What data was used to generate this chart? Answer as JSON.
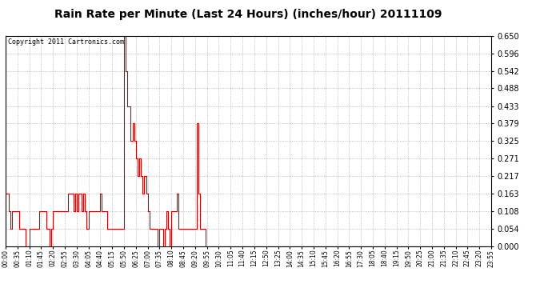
{
  "title": "Rain Rate per Minute (Last 24 Hours) (inches/hour) 20111109",
  "copyright": "Copyright 2011 Cartronics.com",
  "line_color": "#cc0000",
  "bg_color": "#ffffff",
  "grid_color": "#999999",
  "yticks": [
    0.0,
    0.054,
    0.108,
    0.163,
    0.217,
    0.271,
    0.325,
    0.379,
    0.433,
    0.488,
    0.542,
    0.596,
    0.65
  ],
  "ylim": [
    0.0,
    0.65
  ],
  "time_labels": [
    "00:00",
    "00:35",
    "01:10",
    "01:45",
    "02:20",
    "02:55",
    "03:30",
    "04:05",
    "04:40",
    "05:15",
    "05:50",
    "06:25",
    "07:00",
    "07:35",
    "08:10",
    "08:45",
    "09:20",
    "09:55",
    "10:30",
    "11:05",
    "11:40",
    "12:15",
    "12:50",
    "13:25",
    "14:00",
    "14:35",
    "15:10",
    "15:45",
    "16:20",
    "16:55",
    "17:30",
    "18:05",
    "18:40",
    "19:15",
    "19:50",
    "20:25",
    "21:00",
    "21:35",
    "22:10",
    "22:45",
    "23:20",
    "23:55"
  ],
  "n_points": 288,
  "data_y": [
    0.163,
    0.163,
    0.108,
    0.054,
    0.108,
    0.108,
    0.108,
    0.108,
    0.054,
    0.054,
    0.054,
    0.054,
    0.0,
    0.0,
    0.054,
    0.054,
    0.054,
    0.054,
    0.054,
    0.054,
    0.108,
    0.108,
    0.108,
    0.108,
    0.054,
    0.054,
    0.0,
    0.054,
    0.108,
    0.108,
    0.108,
    0.108,
    0.108,
    0.108,
    0.108,
    0.108,
    0.108,
    0.163,
    0.163,
    0.163,
    0.108,
    0.163,
    0.108,
    0.163,
    0.163,
    0.108,
    0.163,
    0.108,
    0.054,
    0.108,
    0.108,
    0.108,
    0.108,
    0.108,
    0.108,
    0.108,
    0.163,
    0.108,
    0.108,
    0.108,
    0.054,
    0.054,
    0.054,
    0.054,
    0.054,
    0.054,
    0.054,
    0.054,
    0.054,
    0.054,
    0.65,
    0.542,
    0.433,
    0.433,
    0.325,
    0.379,
    0.325,
    0.271,
    0.217,
    0.271,
    0.217,
    0.163,
    0.217,
    0.163,
    0.108,
    0.054,
    0.054,
    0.054,
    0.054,
    0.054,
    0.0,
    0.054,
    0.054,
    0.0,
    0.054,
    0.108,
    0.054,
    0.0,
    0.108,
    0.108,
    0.108,
    0.163,
    0.054,
    0.054,
    0.054,
    0.054,
    0.054,
    0.054,
    0.054,
    0.054,
    0.054,
    0.054,
    0.054,
    0.379,
    0.163,
    0.054,
    0.054,
    0.054,
    0.0,
    0.0,
    0.0,
    0.0,
    0.0,
    0.0,
    0.0,
    0.0,
    0.0,
    0.0,
    0.0,
    0.0,
    0.0,
    0.0,
    0.0,
    0.0,
    0.0,
    0.0,
    0.0,
    0.0,
    0.0,
    0.0,
    0.0,
    0.0,
    0.0,
    0.0,
    0.0,
    0.0,
    0.0,
    0.0,
    0.0,
    0.0,
    0.0,
    0.0,
    0.0,
    0.0,
    0.0,
    0.0,
    0.0,
    0.0,
    0.0,
    0.0,
    0.0,
    0.0,
    0.0,
    0.0,
    0.0,
    0.0,
    0.0,
    0.0,
    0.0,
    0.0,
    0.0,
    0.0,
    0.0,
    0.0,
    0.0,
    0.0,
    0.0,
    0.0,
    0.0,
    0.0,
    0.0,
    0.0,
    0.0,
    0.0,
    0.0,
    0.0,
    0.0,
    0.0,
    0.0,
    0.0,
    0.0,
    0.0,
    0.0,
    0.0,
    0.0,
    0.0,
    0.0,
    0.0,
    0.0,
    0.0,
    0.0,
    0.0,
    0.0,
    0.0,
    0.0,
    0.0,
    0.0,
    0.0,
    0.0,
    0.0,
    0.0,
    0.0,
    0.0,
    0.0,
    0.0,
    0.0,
    0.0,
    0.0,
    0.0,
    0.0,
    0.0,
    0.0,
    0.0,
    0.0,
    0.0,
    0.0,
    0.0,
    0.0,
    0.0,
    0.0,
    0.0,
    0.0,
    0.0,
    0.0,
    0.0,
    0.0,
    0.0,
    0.0,
    0.0,
    0.0,
    0.0,
    0.0,
    0.0,
    0.0,
    0.0,
    0.0,
    0.0,
    0.0,
    0.0,
    0.0,
    0.0,
    0.0,
    0.0,
    0.0,
    0.0,
    0.0,
    0.0,
    0.0,
    0.0,
    0.0,
    0.0,
    0.0,
    0.0,
    0.0,
    0.0,
    0.0,
    0.0,
    0.0,
    0.0,
    0.0,
    0.0,
    0.0,
    0.0,
    0.0,
    0.0,
    0.0,
    0.0,
    0.0,
    0.0,
    0.0,
    0.0,
    0.0,
    0.0,
    0.0,
    0.0,
    0.0
  ]
}
